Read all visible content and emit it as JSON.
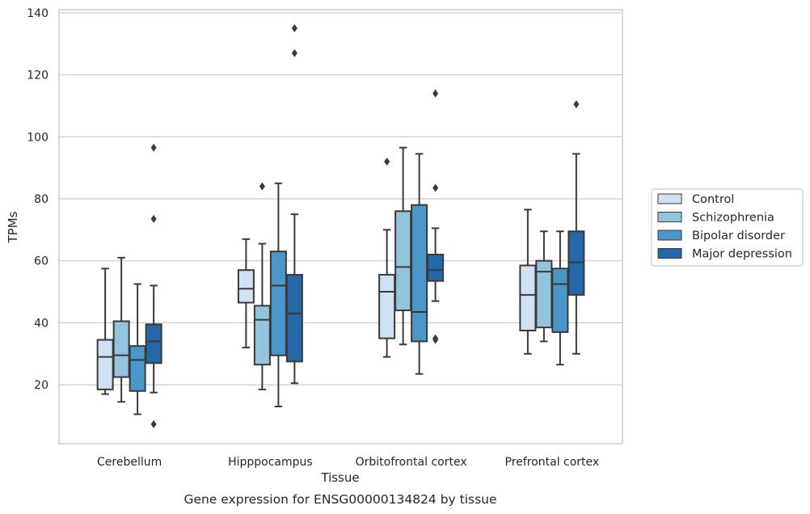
{
  "chart_data": {
    "type": "box",
    "title": "",
    "caption": "Gene expression for ENSG00000134824 by tissue",
    "xlabel": "Tissue",
    "ylabel": "TPMs",
    "ylim": [
      1,
      141
    ],
    "yticks": [
      20,
      40,
      60,
      80,
      100,
      120,
      140
    ],
    "grid": "horizontal",
    "legend_position": "right",
    "categories": [
      "Cerebellum",
      "Hipppocampus",
      "Orbitofrontal cortex",
      "Prefrontal cortex"
    ],
    "series": [
      {
        "name": "Control",
        "color": "#cfe1f2",
        "boxes": [
          {
            "whislo": 17,
            "q1": 18.5,
            "med": 29,
            "q3": 34.5,
            "whishi": 57.5,
            "fliers": []
          },
          {
            "whislo": 32,
            "q1": 46.5,
            "med": 51,
            "q3": 57,
            "whishi": 67,
            "fliers": []
          },
          {
            "whislo": 29,
            "q1": 35,
            "med": 50,
            "q3": 55.5,
            "whishi": 70,
            "fliers": [
              92
            ]
          },
          {
            "whislo": 30,
            "q1": 37.5,
            "med": 49,
            "q3": 58.5,
            "whishi": 76.5,
            "fliers": []
          }
        ]
      },
      {
        "name": "Schizophrenia",
        "color": "#93c4de",
        "boxes": [
          {
            "whislo": 14.5,
            "q1": 22.5,
            "med": 29.5,
            "q3": 40.5,
            "whishi": 61,
            "fliers": []
          },
          {
            "whislo": 18.5,
            "q1": 26.5,
            "med": 41,
            "q3": 45.5,
            "whishi": 65.5,
            "fliers": [
              84
            ]
          },
          {
            "whislo": 33,
            "q1": 44,
            "med": 58,
            "q3": 76,
            "whishi": 96.5,
            "fliers": []
          },
          {
            "whislo": 34,
            "q1": 38.5,
            "med": 56.5,
            "q3": 60,
            "whishi": 69.5,
            "fliers": []
          }
        ]
      },
      {
        "name": "Bipolar disorder",
        "color": "#4b97c9",
        "boxes": [
          {
            "whislo": 10.5,
            "q1": 18,
            "med": 28,
            "q3": 32.5,
            "whishi": 52.5,
            "fliers": []
          },
          {
            "whislo": 13,
            "q1": 29.5,
            "med": 52,
            "q3": 63,
            "whishi": 85,
            "fliers": []
          },
          {
            "whislo": 23.5,
            "q1": 34,
            "med": 43.5,
            "q3": 78,
            "whishi": 94.5,
            "fliers": []
          },
          {
            "whislo": 26.5,
            "q1": 37,
            "med": 52.5,
            "q3": 57.5,
            "whishi": 69.5,
            "fliers": []
          }
        ]
      },
      {
        "name": "Major depression",
        "color": "#2468a8",
        "boxes": [
          {
            "whislo": 17.5,
            "q1": 27,
            "med": 34,
            "q3": 39.5,
            "whishi": 52,
            "fliers": [
              96.5,
              73.5,
              7.3
            ]
          },
          {
            "whislo": 20.5,
            "q1": 27.5,
            "med": 43,
            "q3": 55.5,
            "whishi": 75,
            "fliers": [
              135,
              127
            ]
          },
          {
            "whislo": 47,
            "q1": 53.5,
            "med": 57,
            "q3": 62,
            "whishi": 70.5,
            "fliers": [
              114,
              83.5,
              35,
              34.5
            ]
          },
          {
            "whislo": 30,
            "q1": 49,
            "med": 59.5,
            "q3": 69.5,
            "whishi": 94.5,
            "fliers": [
              110.5
            ]
          }
        ]
      }
    ]
  }
}
